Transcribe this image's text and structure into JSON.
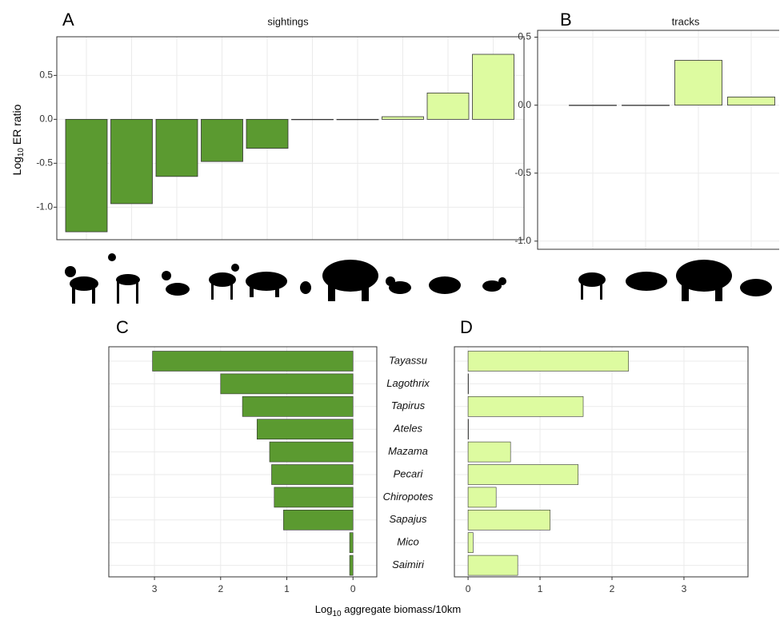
{
  "y_label_parts": [
    "Log",
    "10",
    " ER ratio"
  ],
  "x_label_parts": [
    "Log",
    "10",
    " aggregate biomass/10km"
  ],
  "chart_data": [
    {
      "type": "bar",
      "panel_label": "A",
      "title": "sightings",
      "categories": [
        null,
        null,
        null,
        null,
        null,
        null,
        null,
        null,
        null,
        null
      ],
      "values": [
        -1.28,
        -0.96,
        -0.65,
        -0.48,
        -0.33,
        0,
        0,
        0.03,
        0.3,
        0.74
      ],
      "colors": [
        "#5b9a30",
        "#5b9a30",
        "#5b9a30",
        "#5b9a30",
        "#5b9a30",
        "#ddfba0",
        "#ddfba0",
        "#ddfba0",
        "#ddfba0",
        "#ddfba0"
      ],
      "ylim": [
        -1.37,
        0.94
      ],
      "yticks": [
        {
          "value": -1.0,
          "label": "-1.0"
        },
        {
          "value": -0.5,
          "label": "-0.5"
        },
        {
          "value": 0.0,
          "label": "0.0"
        },
        {
          "value": 0.5,
          "label": "0.5"
        }
      ],
      "grid": true
    },
    {
      "type": "bar",
      "panel_label": "B",
      "title": "tracks",
      "categories": [
        null,
        null,
        null,
        null
      ],
      "values": [
        0,
        0,
        0.33,
        0.06
      ],
      "colors": [
        "#ddfba0",
        "#ddfba0",
        "#ddfba0",
        "#ddfba0"
      ],
      "ylim": [
        -1.06,
        0.55
      ],
      "yticks": [
        {
          "value": -1.0,
          "label": "-1.0"
        },
        {
          "value": -0.5,
          "label": "-0.5"
        },
        {
          "value": 0.0,
          "label": "0.0"
        },
        {
          "value": 0.5,
          "label": "0.5"
        }
      ],
      "grid": true
    },
    {
      "type": "barh",
      "panel_label": "C",
      "categories": [
        "Tayassu",
        "Lagothrix",
        "Tapirus",
        "Ateles",
        "Mazama",
        "Pecari",
        "Chiropotes",
        "Sapajus",
        "Mico",
        "Saimiri"
      ],
      "values": [
        3.03,
        2.0,
        1.67,
        1.45,
        1.26,
        1.23,
        1.19,
        1.05,
        0.05,
        0.05
      ],
      "color": "#5b9a30",
      "xlim": [
        3.69,
        -0.36
      ],
      "xticks": [
        3,
        2,
        1,
        0
      ],
      "grid": true
    },
    {
      "type": "barh",
      "panel_label": "D",
      "values": [
        2.23,
        0,
        1.6,
        0,
        0.59,
        1.53,
        0.39,
        1.14,
        0.07,
        0.69
      ],
      "color": "#ddfba0",
      "xlim": [
        -0.19,
        3.89
      ],
      "xticks": [
        0,
        1,
        2,
        3
      ],
      "grid": true
    }
  ]
}
